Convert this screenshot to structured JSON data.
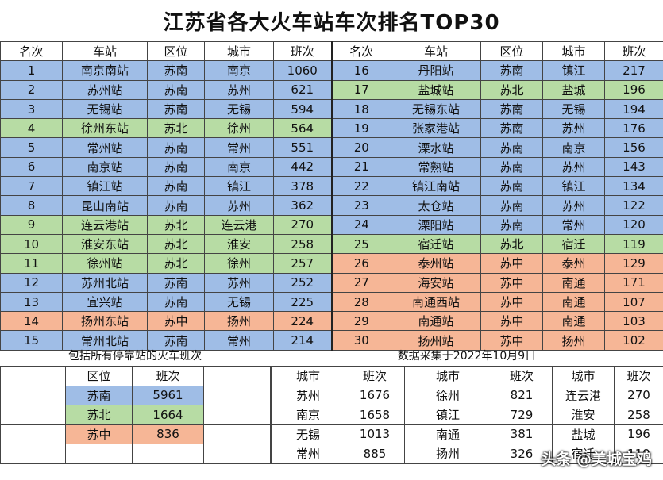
{
  "title": "江苏省各大火车站车次排名TOP30",
  "headers": [
    "名次",
    "车站",
    "区位",
    "城市",
    "班次"
  ],
  "left_rows": [
    {
      "rank": "1",
      "station": "南京南站",
      "region": "苏南",
      "city": "南京",
      "trains": "1060",
      "color": "blue"
    },
    {
      "rank": "2",
      "station": "苏州站",
      "region": "苏南",
      "city": "苏州",
      "trains": "621",
      "color": "blue"
    },
    {
      "rank": "3",
      "station": "无锡站",
      "region": "苏南",
      "city": "无锡",
      "trains": "594",
      "color": "blue"
    },
    {
      "rank": "4",
      "station": "徐州东站",
      "region": "苏北",
      "city": "徐州",
      "trains": "564",
      "color": "green"
    },
    {
      "rank": "5",
      "station": "常州站",
      "region": "苏南",
      "city": "常州",
      "trains": "551",
      "color": "blue"
    },
    {
      "rank": "6",
      "station": "南京站",
      "region": "苏南",
      "city": "南京",
      "trains": "442",
      "color": "blue"
    },
    {
      "rank": "7",
      "station": "镇江站",
      "region": "苏南",
      "city": "镇江",
      "trains": "378",
      "color": "blue"
    },
    {
      "rank": "8",
      "station": "昆山南站",
      "region": "苏南",
      "city": "苏州",
      "trains": "362",
      "color": "blue"
    },
    {
      "rank": "9",
      "station": "连云港站",
      "region": "苏北",
      "city": "连云港",
      "trains": "270",
      "color": "green"
    },
    {
      "rank": "10",
      "station": "淮安东站",
      "region": "苏北",
      "city": "淮安",
      "trains": "258",
      "color": "green"
    },
    {
      "rank": "11",
      "station": "徐州站",
      "region": "苏北",
      "city": "徐州",
      "trains": "257",
      "color": "green"
    },
    {
      "rank": "12",
      "station": "苏州北站",
      "region": "苏南",
      "city": "苏州",
      "trains": "252",
      "color": "blue"
    },
    {
      "rank": "13",
      "station": "宜兴站",
      "region": "苏南",
      "city": "无锡",
      "trains": "225",
      "color": "blue"
    },
    {
      "rank": "14",
      "station": "扬州东站",
      "region": "苏中",
      "city": "扬州",
      "trains": "224",
      "color": "orange"
    },
    {
      "rank": "15",
      "station": "常州北站",
      "region": "苏南",
      "city": "常州",
      "trains": "214",
      "color": "blue"
    }
  ],
  "right_rows": [
    {
      "rank": "16",
      "station": "丹阳站",
      "region": "苏南",
      "city": "镇江",
      "trains": "217",
      "color": "blue"
    },
    {
      "rank": "17",
      "station": "盐城站",
      "region": "苏北",
      "city": "盐城",
      "trains": "196",
      "color": "green"
    },
    {
      "rank": "18",
      "station": "无锡东站",
      "region": "苏南",
      "city": "无锡",
      "trains": "194",
      "color": "blue"
    },
    {
      "rank": "19",
      "station": "张家港站",
      "region": "苏南",
      "city": "苏州",
      "trains": "176",
      "color": "blue"
    },
    {
      "rank": "20",
      "station": "溧水站",
      "region": "苏南",
      "city": "南京",
      "trains": "156",
      "color": "blue"
    },
    {
      "rank": "21",
      "station": "常熟站",
      "region": "苏南",
      "city": "苏州",
      "trains": "143",
      "color": "blue"
    },
    {
      "rank": "22",
      "station": "镇江南站",
      "region": "苏南",
      "city": "镇江",
      "trains": "134",
      "color": "blue"
    },
    {
      "rank": "23",
      "station": "太仓站",
      "region": "苏南",
      "city": "苏州",
      "trains": "122",
      "color": "blue"
    },
    {
      "rank": "24",
      "station": "溧阳站",
      "region": "苏南",
      "city": "常州",
      "trains": "120",
      "color": "blue"
    },
    {
      "rank": "25",
      "station": "宿迁站",
      "region": "苏北",
      "city": "宿迁",
      "trains": "119",
      "color": "green"
    },
    {
      "rank": "26",
      "station": "泰州站",
      "region": "苏中",
      "city": "泰州",
      "trains": "129",
      "color": "orange"
    },
    {
      "rank": "27",
      "station": "海安站",
      "region": "苏中",
      "city": "南通",
      "trains": "171",
      "color": "orange"
    },
    {
      "rank": "28",
      "station": "南通西站",
      "region": "苏中",
      "city": "南通",
      "trains": "107",
      "color": "orange"
    },
    {
      "rank": "29",
      "station": "南通站",
      "region": "苏中",
      "city": "南通",
      "trains": "103",
      "color": "orange"
    },
    {
      "rank": "30",
      "station": "扬州站",
      "region": "苏中",
      "city": "扬州",
      "trains": "102",
      "color": "orange"
    }
  ],
  "caption_left": "包括所有停靠站的火车班次",
  "caption_right": "数据采集于2022年10月9日",
  "region_table": {
    "headers": [
      "区位",
      "班次"
    ],
    "rows": [
      {
        "region": "苏南",
        "trains": "5961",
        "color": "blue"
      },
      {
        "region": "苏北",
        "trains": "1664",
        "color": "green"
      },
      {
        "region": "苏中",
        "trains": "836",
        "color": "orange"
      }
    ]
  },
  "city_table": {
    "headers": [
      "城市",
      "班次"
    ],
    "rows": [
      [
        "苏州",
        "1676",
        "徐州",
        "821",
        "连云港",
        "270"
      ],
      [
        "南京",
        "1658",
        "镇江",
        "729",
        "淮安",
        "258"
      ],
      [
        "无锡",
        "1013",
        "南通",
        "381",
        "盐城",
        "196"
      ],
      [
        "常州",
        "885",
        "扬州",
        "326",
        "宿迁",
        "119"
      ]
    ]
  },
  "colors": {
    "blue": "#9fbde6",
    "green": "#b7dca4",
    "orange": "#f6b696"
  },
  "watermark": "头条 @美城宝鸡"
}
